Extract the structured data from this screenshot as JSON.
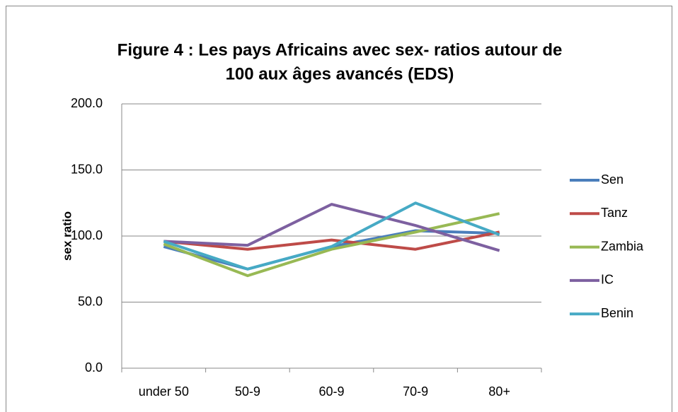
{
  "chart_data": {
    "type": "line",
    "title": [
      "Figure 4 : Les pays Africains avec sex- ratios autour de",
      "100 aux âges avancés  (EDS)"
    ],
    "y_label": "sex ratio",
    "categories": [
      "under 50",
      "50-9",
      "60-9",
      "70-9",
      "80+"
    ],
    "series": [
      {
        "name": "Sen",
        "color": "#4a7ebb",
        "values": [
          92,
          75,
          92,
          104,
          102
        ]
      },
      {
        "name": "Tanz",
        "color": "#be4b48",
        "values": [
          96,
          90,
          97,
          90,
          103
        ]
      },
      {
        "name": "Zambia",
        "color": "#98b954",
        "values": [
          94,
          70,
          90,
          103,
          117
        ]
      },
      {
        "name": "IC",
        "color": "#7d60a0",
        "values": [
          96,
          93,
          124,
          108,
          89
        ]
      },
      {
        "name": "Benin",
        "color": "#46aac5",
        "values": [
          96,
          75,
          92,
          125,
          101
        ]
      }
    ],
    "ylim": [
      0,
      200
    ],
    "yticks": [
      {
        "value": 0,
        "label": "0.0"
      },
      {
        "value": 50,
        "label": "50.0"
      },
      {
        "value": 100,
        "label": "100.0"
      },
      {
        "value": 150,
        "label": "150.0"
      },
      {
        "value": 200,
        "label": "200.0"
      }
    ],
    "grid": true,
    "legend": "right"
  }
}
